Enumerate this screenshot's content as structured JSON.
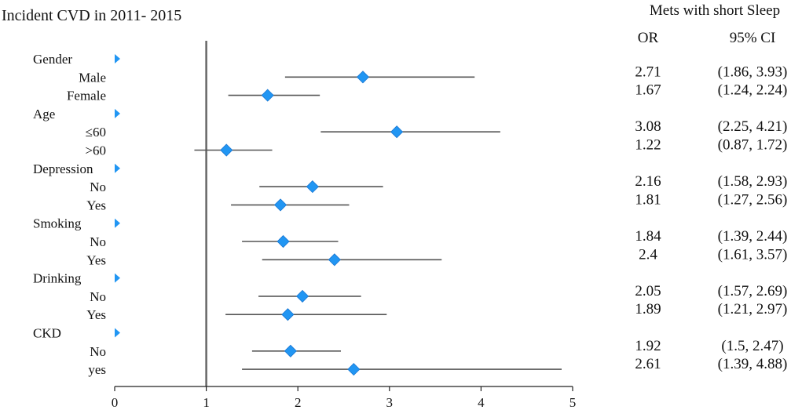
{
  "chart_data": {
    "type": "forest",
    "title": "Incident CVD in 2011- 2015",
    "right_header": "Mets with short Sleep",
    "col_or": "OR",
    "col_ci": "95% CI",
    "xlim": [
      0,
      5
    ],
    "xticks": [
      "0",
      "1",
      "2",
      "3",
      "4",
      "5"
    ],
    "reference_line": 1,
    "marker_color": "#2196f3",
    "groups": [
      {
        "label": "Gender",
        "rows": [
          {
            "label": "Male",
            "or": 2.71,
            "lo": 1.86,
            "hi": 3.93,
            "or_text": "2.71",
            "ci_text": "(1.86, 3.93)"
          },
          {
            "label": "Female",
            "or": 1.67,
            "lo": 1.24,
            "hi": 2.24,
            "or_text": "1.67",
            "ci_text": "(1.24, 2.24)"
          }
        ]
      },
      {
        "label": "Age",
        "rows": [
          {
            "label": "≤60",
            "or": 3.08,
            "lo": 2.25,
            "hi": 4.21,
            "or_text": "3.08",
            "ci_text": "(2.25, 4.21)"
          },
          {
            "label": ">60",
            "or": 1.22,
            "lo": 0.87,
            "hi": 1.72,
            "or_text": "1.22",
            "ci_text": "(0.87, 1.72)"
          }
        ]
      },
      {
        "label": "Depression",
        "rows": [
          {
            "label": "No",
            "or": 2.16,
            "lo": 1.58,
            "hi": 2.93,
            "or_text": "2.16",
            "ci_text": "(1.58, 2.93)"
          },
          {
            "label": "Yes",
            "or": 1.81,
            "lo": 1.27,
            "hi": 2.56,
            "or_text": "1.81",
            "ci_text": "(1.27, 2.56)"
          }
        ]
      },
      {
        "label": "Smoking",
        "rows": [
          {
            "label": "No",
            "or": 1.84,
            "lo": 1.39,
            "hi": 2.44,
            "or_text": "1.84",
            "ci_text": "(1.39, 2.44)"
          },
          {
            "label": "Yes",
            "or": 2.4,
            "lo": 1.61,
            "hi": 3.57,
            "or_text": "2.4",
            "ci_text": "(1.61, 3.57)"
          }
        ]
      },
      {
        "label": "Drinking",
        "rows": [
          {
            "label": "No",
            "or": 2.05,
            "lo": 1.57,
            "hi": 2.69,
            "or_text": "2.05",
            "ci_text": "(1.57, 2.69)"
          },
          {
            "label": "Yes",
            "or": 1.89,
            "lo": 1.21,
            "hi": 2.97,
            "or_text": "1.89",
            "ci_text": "(1.21, 2.97)"
          }
        ]
      },
      {
        "label": "CKD",
        "rows": [
          {
            "label": "No",
            "or": 1.92,
            "lo": 1.5,
            "hi": 2.47,
            "or_text": "1.92",
            "ci_text": "(1.5, 2.47)"
          },
          {
            "label": "yes",
            "or": 2.61,
            "lo": 1.39,
            "hi": 4.88,
            "or_text": "2.61",
            "ci_text": "(1.39, 4.88)"
          }
        ]
      }
    ]
  }
}
